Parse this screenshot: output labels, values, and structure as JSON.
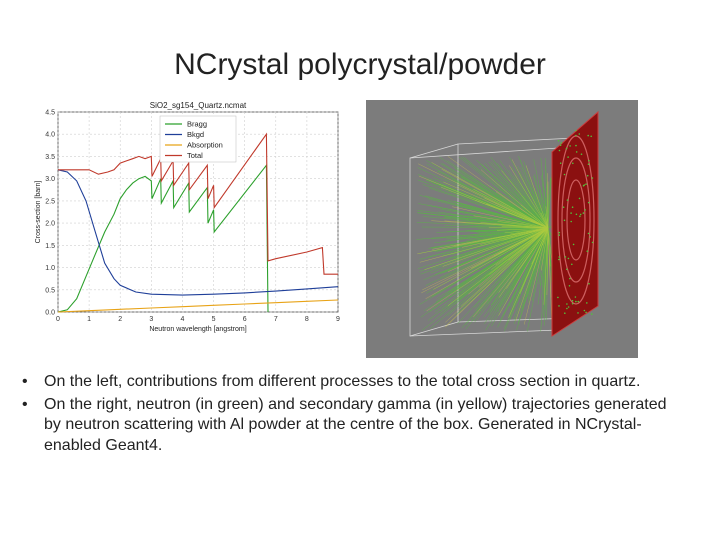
{
  "slide": {
    "title": "NCrystal polycrystal/powder",
    "bullets": [
      "On the left, contributions from different processes to the total cross section in quartz.",
      "On the right, neutron (in green) and secondary gamma (in yellow) trajectories generated by neutron scattering with Al powder at the centre of the box. Generated in NCrystal-enabled Geant4."
    ],
    "bullet_symbol": "•"
  },
  "chart_data": {
    "type": "line",
    "title": "SiO2_sg154_Quartz.ncmat",
    "xlabel": "Neutron wavelength [angstrom]",
    "ylabel": "Cross-section [barn]",
    "xlim": [
      0,
      9
    ],
    "ylim": [
      0,
      4.5
    ],
    "xticks": [
      "0",
      "1",
      "2",
      "3",
      "4",
      "5",
      "6",
      "7",
      "8",
      "9"
    ],
    "yticks": [
      "0.0",
      "0.5",
      "1.0",
      "1.5",
      "2.0",
      "2.5",
      "3.0",
      "3.5",
      "4.0",
      "4.5"
    ],
    "grid": true,
    "legend_position": "top-center",
    "series": [
      {
        "name": "Bragg",
        "color": "#2ca02c",
        "points": [
          [
            0,
            0
          ],
          [
            0.3,
            0.05
          ],
          [
            0.6,
            0.3
          ],
          [
            0.9,
            0.8
          ],
          [
            1.2,
            1.3
          ],
          [
            1.5,
            1.8
          ],
          [
            1.8,
            2.2
          ],
          [
            2.0,
            2.55
          ],
          [
            2.2,
            2.75
          ],
          [
            2.4,
            2.9
          ],
          [
            2.6,
            3.0
          ],
          [
            2.8,
            3.05
          ],
          [
            3.0,
            2.95
          ],
          [
            3.02,
            2.55
          ],
          [
            3.3,
            3.0
          ],
          [
            3.32,
            2.45
          ],
          [
            3.7,
            2.95
          ],
          [
            3.72,
            2.35
          ],
          [
            4.2,
            2.9
          ],
          [
            4.22,
            2.25
          ],
          [
            4.8,
            2.8
          ],
          [
            4.82,
            2.0
          ],
          [
            5.0,
            2.3
          ],
          [
            5.02,
            1.8
          ],
          [
            6.7,
            3.3
          ],
          [
            6.75,
            0.0
          ]
        ]
      },
      {
        "name": "Bkgd",
        "color": "#1f3f99",
        "points": [
          [
            0,
            3.2
          ],
          [
            0.3,
            3.15
          ],
          [
            0.6,
            2.95
          ],
          [
            0.9,
            2.5
          ],
          [
            1.2,
            1.8
          ],
          [
            1.5,
            1.1
          ],
          [
            1.8,
            0.75
          ],
          [
            2.0,
            0.6
          ],
          [
            2.5,
            0.45
          ],
          [
            3,
            0.4
          ],
          [
            4,
            0.38
          ],
          [
            5,
            0.4
          ],
          [
            6,
            0.43
          ],
          [
            7,
            0.47
          ],
          [
            8,
            0.52
          ],
          [
            9,
            0.57
          ]
        ]
      },
      {
        "name": "Absorption",
        "color": "#e8a317",
        "points": [
          [
            0,
            0.0
          ],
          [
            1,
            0.03
          ],
          [
            2,
            0.06
          ],
          [
            3,
            0.09
          ],
          [
            4,
            0.12
          ],
          [
            5,
            0.15
          ],
          [
            6,
            0.18
          ],
          [
            7,
            0.21
          ],
          [
            8,
            0.24
          ],
          [
            9,
            0.27
          ]
        ]
      },
      {
        "name": "Total",
        "color": "#c0392b",
        "points": [
          [
            0,
            3.2
          ],
          [
            0.6,
            3.2
          ],
          [
            1.0,
            3.2
          ],
          [
            1.3,
            3.1
          ],
          [
            1.6,
            3.15
          ],
          [
            1.8,
            3.2
          ],
          [
            2.0,
            3.35
          ],
          [
            2.2,
            3.4
          ],
          [
            2.4,
            3.45
          ],
          [
            2.6,
            3.5
          ],
          [
            2.8,
            3.45
          ],
          [
            3.0,
            3.5
          ],
          [
            3.02,
            3.05
          ],
          [
            3.3,
            3.45
          ],
          [
            3.32,
            2.95
          ],
          [
            3.7,
            3.4
          ],
          [
            3.72,
            2.85
          ],
          [
            4.2,
            3.35
          ],
          [
            4.22,
            2.75
          ],
          [
            4.8,
            3.3
          ],
          [
            4.82,
            2.55
          ],
          [
            5.0,
            2.85
          ],
          [
            5.02,
            2.35
          ],
          [
            6.7,
            4.0
          ],
          [
            6.75,
            1.15
          ],
          [
            7,
            1.2
          ],
          [
            8,
            1.35
          ],
          [
            8.5,
            1.45
          ],
          [
            8.55,
            0.85
          ],
          [
            9,
            0.85
          ]
        ]
      }
    ]
  },
  "render": {
    "colors": {
      "background": "#7c7c7c",
      "neutron": "#52c23a",
      "gamma": "#e2dc3a",
      "detector": "#8b1010",
      "box": "#d8d8d8"
    }
  }
}
